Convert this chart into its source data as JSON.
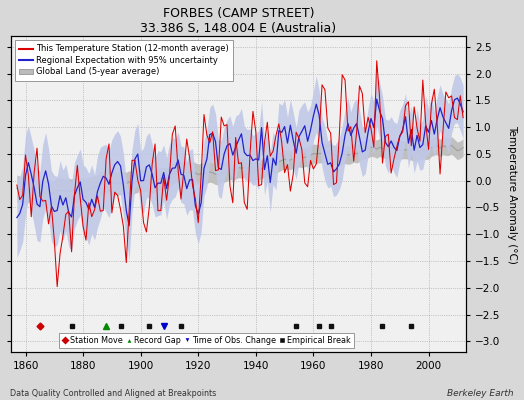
{
  "title": "FORBES (CAMP STREET)",
  "subtitle": "33.386 S, 148.004 E (Australia)",
  "ylabel": "Temperature Anomaly (°C)",
  "footer_left": "Data Quality Controlled and Aligned at Breakpoints",
  "footer_right": "Berkeley Earth",
  "year_start": 1857,
  "year_end": 2012,
  "xlim": [
    1855,
    2013
  ],
  "ylim": [
    -3.2,
    2.7
  ],
  "yticks": [
    -3,
    -2.5,
    -2,
    -1.5,
    -1,
    -0.5,
    0,
    0.5,
    1,
    1.5,
    2,
    2.5
  ],
  "xticks": [
    1860,
    1880,
    1900,
    1920,
    1940,
    1960,
    1980,
    2000
  ],
  "fig_bg_color": "#d8d8d8",
  "plot_bg_color": "#f0f0f0",
  "station_color": "#dd0000",
  "regional_color": "#2222cc",
  "uncertainty_color": "#c0c8e8",
  "global_color": "#bbbbbb",
  "global_line_color": "#999999",
  "marker_colors": {
    "station_move": "#cc0000",
    "record_gap": "#008800",
    "time_obs": "#0000cc",
    "empirical": "#111111"
  },
  "markers": {
    "empirical_breaks": [
      1876,
      1893,
      1903,
      1914,
      1954,
      1962,
      1966,
      1984,
      1994
    ],
    "station_moves": [
      1865
    ],
    "record_gaps": [
      1888
    ],
    "time_obs_changes": [
      1908
    ]
  },
  "noise_seed_station": 42,
  "noise_seed_regional": 17,
  "noise_seed_global": 99
}
